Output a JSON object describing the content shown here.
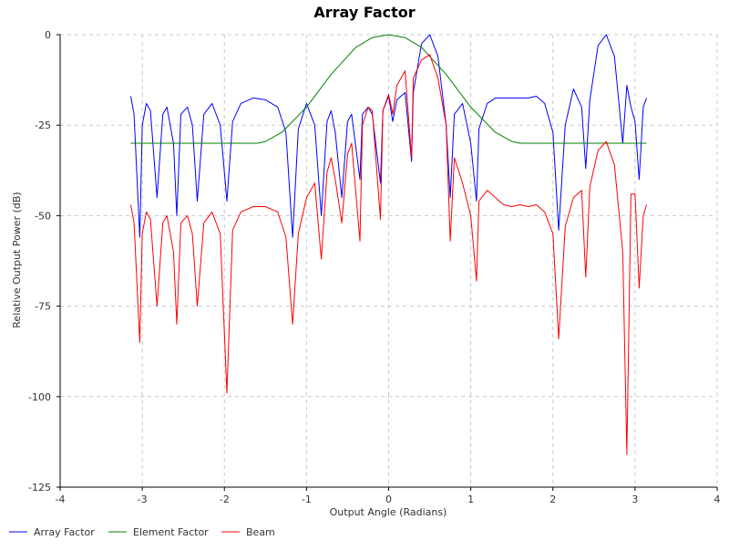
{
  "chart_data": {
    "type": "line",
    "title": "Array Factor",
    "xlabel": "Output Angle (Radians)",
    "ylabel": "Relative Output Power (dB)",
    "xlim": [
      -4,
      4
    ],
    "ylim": [
      -125,
      0
    ],
    "x_ticks": [
      -4,
      -3,
      -2,
      -1,
      0,
      1,
      2,
      3,
      4
    ],
    "y_ticks": [
      0,
      -25,
      -50,
      -75,
      -100,
      -125
    ],
    "grid": true,
    "legend_position": "bottom",
    "series": [
      {
        "name": "Array Factor",
        "color": "#0000ff",
        "x": [
          -3.14,
          -3.1,
          -3.03,
          -3.0,
          -2.95,
          -2.9,
          -2.82,
          -2.75,
          -2.7,
          -2.62,
          -2.58,
          -2.53,
          -2.45,
          -2.39,
          -2.33,
          -2.25,
          -2.15,
          -2.05,
          -1.97,
          -1.9,
          -1.8,
          -1.65,
          -1.5,
          -1.35,
          -1.25,
          -1.17,
          -1.1,
          -1.0,
          -0.9,
          -0.82,
          -0.75,
          -0.7,
          -0.65,
          -0.57,
          -0.5,
          -0.45,
          -0.35,
          -0.32,
          -0.25,
          -0.2,
          -0.1,
          -0.07,
          0.0,
          0.05,
          0.1,
          0.2,
          0.28,
          0.3,
          0.4,
          0.5,
          0.6,
          0.7,
          0.75,
          0.8,
          0.9,
          1.0,
          1.07,
          1.1,
          1.2,
          1.3,
          1.4,
          1.5,
          1.6,
          1.7,
          1.8,
          1.9,
          2.0,
          2.07,
          2.15,
          2.25,
          2.35,
          2.4,
          2.45,
          2.55,
          2.65,
          2.75,
          2.85,
          2.9,
          2.95,
          3.0,
          3.05,
          3.1,
          3.14
        ],
        "values": [
          -17,
          -22,
          -56,
          -25,
          -19,
          -21,
          -45,
          -22,
          -20,
          -30,
          -50,
          -22,
          -20,
          -25,
          -46,
          -22,
          -19,
          -25,
          -46,
          -24,
          -19,
          -17.5,
          -18,
          -20,
          -27,
          -56,
          -26,
          -19,
          -25,
          -50,
          -24,
          -21,
          -27,
          -45,
          -24,
          -22,
          -40,
          -22,
          -20,
          -22,
          -41,
          -21,
          -17,
          -24,
          -18,
          -16,
          -35,
          -16,
          -2.5,
          0,
          -6,
          -25,
          -45,
          -22,
          -19,
          -30,
          -46,
          -26,
          -19,
          -17.5,
          -17.5,
          -17.5,
          -17.5,
          -17.5,
          -17,
          -19,
          -27,
          -54,
          -25,
          -15,
          -20,
          -37,
          -18,
          -3,
          0,
          -6,
          -30,
          -14,
          -20,
          -24,
          -40,
          -20,
          -17.5
        ]
      },
      {
        "name": "Element Factor",
        "color": "#008000",
        "x": [
          -3.14,
          -2.5,
          -2.0,
          -1.6,
          -1.5,
          -1.3,
          -1.0,
          -0.7,
          -0.4,
          -0.2,
          0.0,
          0.2,
          0.4,
          0.7,
          1.0,
          1.3,
          1.5,
          1.6,
          2.0,
          2.5,
          3.14
        ],
        "values": [
          -30,
          -30,
          -30,
          -30,
          -29.5,
          -27,
          -20,
          -11,
          -3.5,
          -0.8,
          0,
          -0.8,
          -3.5,
          -11,
          -20,
          -27,
          -29.5,
          -30,
          -30,
          -30,
          -30
        ]
      },
      {
        "name": "Beam",
        "color": "#ff0000",
        "x": [
          -3.14,
          -3.1,
          -3.03,
          -3.0,
          -2.95,
          -2.9,
          -2.82,
          -2.75,
          -2.7,
          -2.62,
          -2.58,
          -2.53,
          -2.45,
          -2.39,
          -2.33,
          -2.25,
          -2.15,
          -2.05,
          -1.97,
          -1.9,
          -1.8,
          -1.65,
          -1.5,
          -1.35,
          -1.25,
          -1.17,
          -1.1,
          -1.0,
          -0.9,
          -0.82,
          -0.75,
          -0.7,
          -0.65,
          -0.57,
          -0.5,
          -0.45,
          -0.35,
          -0.32,
          -0.25,
          -0.2,
          -0.1,
          -0.07,
          0.0,
          0.05,
          0.1,
          0.2,
          0.28,
          0.3,
          0.4,
          0.5,
          0.6,
          0.7,
          0.75,
          0.8,
          0.9,
          1.0,
          1.07,
          1.1,
          1.2,
          1.3,
          1.4,
          1.5,
          1.6,
          1.7,
          1.8,
          1.9,
          2.0,
          2.07,
          2.15,
          2.25,
          2.35,
          2.4,
          2.45,
          2.55,
          2.65,
          2.75,
          2.85,
          2.9,
          2.95,
          3.0,
          3.05,
          3.1,
          3.14
        ],
        "values": [
          -47,
          -52,
          -85,
          -55,
          -49,
          -51,
          -75,
          -52,
          -50,
          -60,
          -80,
          -52,
          -50,
          -55,
          -75,
          -52,
          -49,
          -55,
          -99,
          -54,
          -49,
          -47.5,
          -47.5,
          -49,
          -56,
          -80,
          -55,
          -45,
          -41,
          -62,
          -38,
          -34,
          -40,
          -52,
          -33,
          -30,
          -57,
          -25,
          -20,
          -21,
          -51,
          -21,
          -16.5,
          -22,
          -14,
          -10,
          -34,
          -12,
          -7,
          -5.5,
          -12,
          -25,
          -57,
          -34,
          -41,
          -50,
          -68,
          -46,
          -43,
          -45,
          -47,
          -47.5,
          -47,
          -47.5,
          -47,
          -49,
          -55,
          -84,
          -53,
          -45,
          -43,
          -67,
          -42,
          -32,
          -29.5,
          -36,
          -60,
          -116,
          -44,
          -44,
          -70,
          -50,
          -47
        ]
      }
    ]
  }
}
